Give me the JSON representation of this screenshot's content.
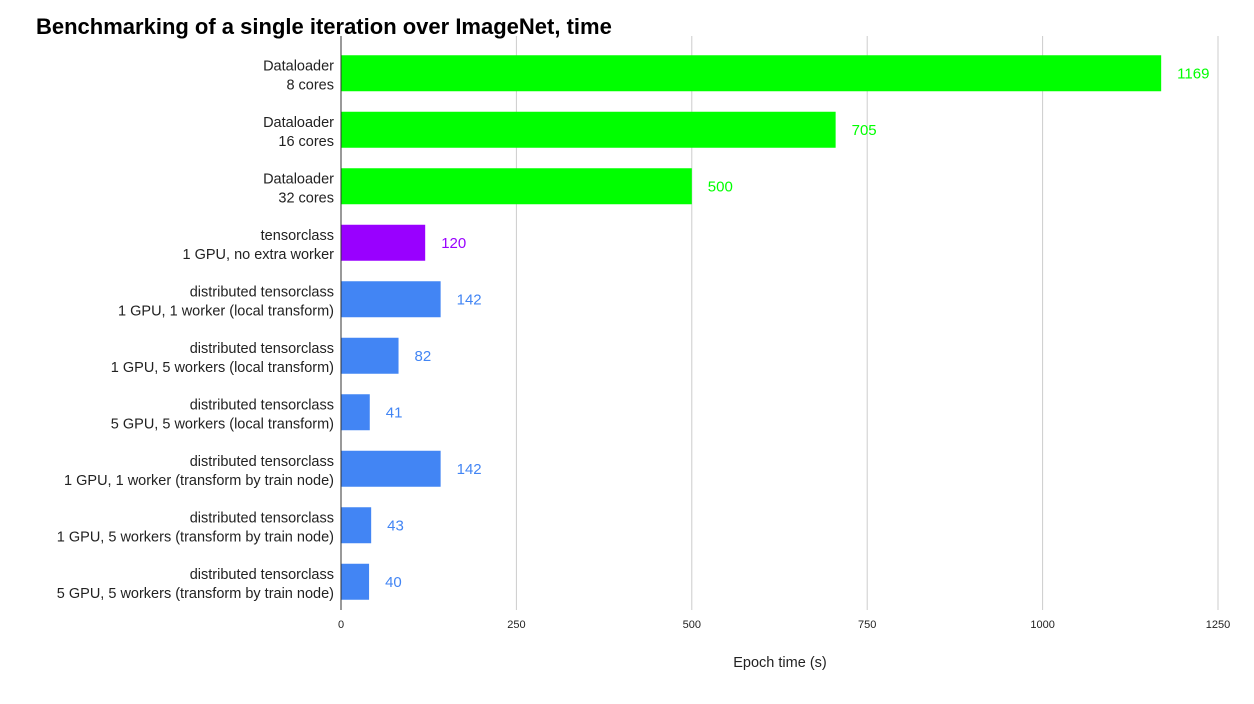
{
  "chart_data": {
    "type": "bar",
    "orientation": "horizontal",
    "title": "Benchmarking of a single iteration over ImageNet, time",
    "xlabel": "Epoch time (s)",
    "ylabel": "",
    "xlim": [
      0,
      1250
    ],
    "xticks": [
      0,
      250,
      500,
      750,
      1000,
      1250
    ],
    "grid": true,
    "legend": "none",
    "categories": [
      [
        "Dataloader",
        "8 cores"
      ],
      [
        "Dataloader",
        "16 cores"
      ],
      [
        "Dataloader",
        "32 cores"
      ],
      [
        "tensorclass",
        "1 GPU, no extra worker"
      ],
      [
        "distributed tensorclass",
        "1 GPU, 1 worker (local transform)"
      ],
      [
        "distributed tensorclass",
        "1 GPU, 5 workers (local transform)"
      ],
      [
        "distributed tensorclass",
        "5 GPU, 5 workers (local transform)"
      ],
      [
        "distributed tensorclass",
        "1 GPU, 1 worker (transform by train node)"
      ],
      [
        "distributed tensorclass",
        "1 GPU, 5 workers (transform by train node)"
      ],
      [
        "distributed tensorclass",
        "5 GPU, 5 workers (transform by train node)"
      ]
    ],
    "values": [
      1169,
      705,
      500,
      120,
      142,
      82,
      41,
      142,
      43,
      40
    ],
    "colors": [
      "#00ff00",
      "#00ff00",
      "#00ff00",
      "#9900ff",
      "#4285f4",
      "#4285f4",
      "#4285f4",
      "#4285f4",
      "#4285f4",
      "#4285f4"
    ]
  }
}
